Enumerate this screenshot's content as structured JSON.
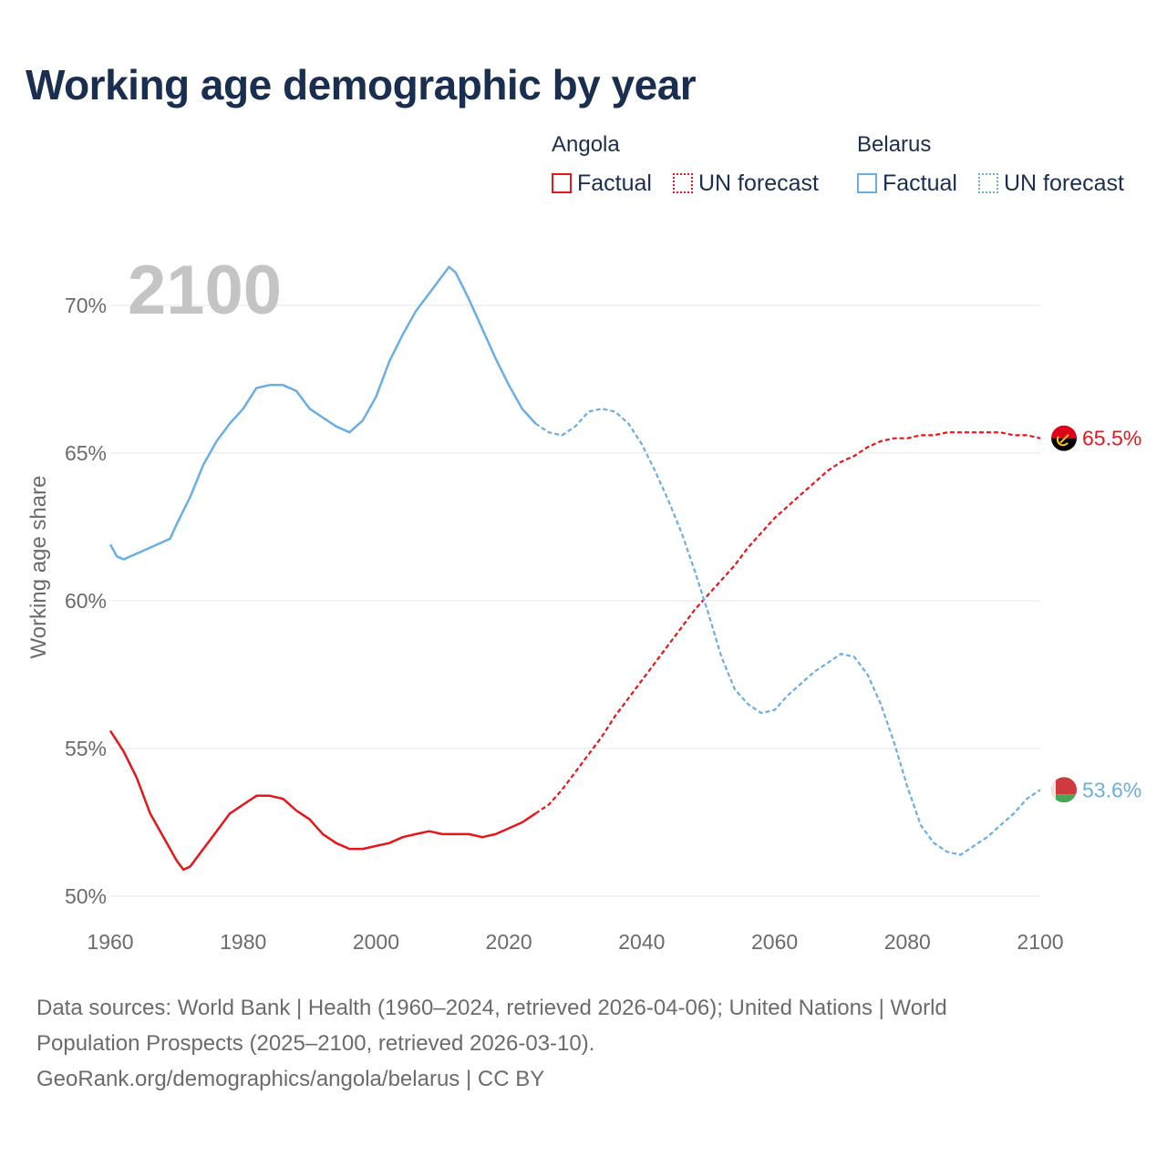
{
  "title": "Working age demographic by year",
  "legend": {
    "angola": {
      "name": "Angola",
      "factual": "Factual",
      "forecast": "UN forecast",
      "color": "#e8161b"
    },
    "belarus": {
      "name": "Belarus",
      "factual": "Factual",
      "forecast": "UN forecast",
      "color": "#6aaee4"
    }
  },
  "sources": {
    "line1": "Data sources: World Bank | Health (1960–2024, retrieved 2026-04-06); United Nations | World",
    "line2": "Population Prospects (2025–2100, retrieved 2026-03-10).",
    "line3": "GeoRank.org/demographics/angola/belarus | CC BY"
  },
  "chart_data": {
    "type": "line",
    "title": "Working age demographic by year",
    "xlabel": "",
    "ylabel": "Working age share",
    "current_year": "2100",
    "xlim": [
      1960,
      2100
    ],
    "ylim": [
      50,
      72
    ],
    "x_ticks": [
      1960,
      1980,
      2000,
      2020,
      2040,
      2060,
      2080,
      2100
    ],
    "y_ticks": [
      50,
      55,
      60,
      65,
      70
    ],
    "y_tick_suffix": "%",
    "forecast_start": 2024,
    "series": [
      {
        "name": "Angola",
        "color": "#e8161b",
        "end_label": "65.5%",
        "flag": "angola-flag",
        "points": [
          [
            1960,
            55.6
          ],
          [
            1962,
            54.9
          ],
          [
            1964,
            54.0
          ],
          [
            1966,
            52.8
          ],
          [
            1968,
            52.0
          ],
          [
            1970,
            51.2
          ],
          [
            1971,
            50.9
          ],
          [
            1972,
            51.0
          ],
          [
            1974,
            51.6
          ],
          [
            1976,
            52.2
          ],
          [
            1978,
            52.8
          ],
          [
            1980,
            53.1
          ],
          [
            1982,
            53.4
          ],
          [
            1984,
            53.4
          ],
          [
            1986,
            53.3
          ],
          [
            1988,
            52.9
          ],
          [
            1990,
            52.6
          ],
          [
            1992,
            52.1
          ],
          [
            1994,
            51.8
          ],
          [
            1996,
            51.6
          ],
          [
            1998,
            51.6
          ],
          [
            2000,
            51.7
          ],
          [
            2002,
            51.8
          ],
          [
            2004,
            52.0
          ],
          [
            2006,
            52.1
          ],
          [
            2008,
            52.2
          ],
          [
            2010,
            52.1
          ],
          [
            2012,
            52.1
          ],
          [
            2014,
            52.1
          ],
          [
            2016,
            52.0
          ],
          [
            2018,
            52.1
          ],
          [
            2020,
            52.3
          ],
          [
            2022,
            52.5
          ],
          [
            2024,
            52.8
          ],
          [
            2026,
            53.1
          ],
          [
            2028,
            53.6
          ],
          [
            2030,
            54.2
          ],
          [
            2032,
            54.8
          ],
          [
            2034,
            55.4
          ],
          [
            2036,
            56.1
          ],
          [
            2038,
            56.7
          ],
          [
            2040,
            57.3
          ],
          [
            2042,
            57.9
          ],
          [
            2044,
            58.5
          ],
          [
            2046,
            59.1
          ],
          [
            2048,
            59.7
          ],
          [
            2050,
            60.2
          ],
          [
            2052,
            60.7
          ],
          [
            2054,
            61.2
          ],
          [
            2056,
            61.8
          ],
          [
            2058,
            62.3
          ],
          [
            2060,
            62.8
          ],
          [
            2062,
            63.2
          ],
          [
            2064,
            63.6
          ],
          [
            2066,
            64.0
          ],
          [
            2068,
            64.4
          ],
          [
            2070,
            64.7
          ],
          [
            2072,
            64.9
          ],
          [
            2074,
            65.2
          ],
          [
            2076,
            65.4
          ],
          [
            2078,
            65.5
          ],
          [
            2080,
            65.5
          ],
          [
            2082,
            65.6
          ],
          [
            2084,
            65.6
          ],
          [
            2086,
            65.7
          ],
          [
            2088,
            65.7
          ],
          [
            2090,
            65.7
          ],
          [
            2092,
            65.7
          ],
          [
            2094,
            65.7
          ],
          [
            2096,
            65.6
          ],
          [
            2098,
            65.6
          ],
          [
            2100,
            65.5
          ]
        ]
      },
      {
        "name": "Belarus",
        "color": "#6aaee4",
        "end_label": "53.6%",
        "flag": "belarus-flag",
        "points": [
          [
            1960,
            61.9
          ],
          [
            1961,
            61.5
          ],
          [
            1962,
            61.4
          ],
          [
            1964,
            61.6
          ],
          [
            1966,
            61.8
          ],
          [
            1968,
            62.0
          ],
          [
            1969,
            62.1
          ],
          [
            1970,
            62.6
          ],
          [
            1972,
            63.5
          ],
          [
            1974,
            64.6
          ],
          [
            1976,
            65.4
          ],
          [
            1978,
            66.0
          ],
          [
            1980,
            66.5
          ],
          [
            1982,
            67.2
          ],
          [
            1984,
            67.3
          ],
          [
            1986,
            67.3
          ],
          [
            1988,
            67.1
          ],
          [
            1990,
            66.5
          ],
          [
            1992,
            66.2
          ],
          [
            1994,
            65.9
          ],
          [
            1996,
            65.7
          ],
          [
            1998,
            66.1
          ],
          [
            2000,
            66.9
          ],
          [
            2002,
            68.1
          ],
          [
            2004,
            69.0
          ],
          [
            2006,
            69.8
          ],
          [
            2008,
            70.4
          ],
          [
            2010,
            71.0
          ],
          [
            2011,
            71.3
          ],
          [
            2012,
            71.1
          ],
          [
            2014,
            70.2
          ],
          [
            2016,
            69.2
          ],
          [
            2018,
            68.2
          ],
          [
            2020,
            67.3
          ],
          [
            2022,
            66.5
          ],
          [
            2024,
            66.0
          ],
          [
            2026,
            65.7
          ],
          [
            2028,
            65.6
          ],
          [
            2030,
            65.9
          ],
          [
            2032,
            66.4
          ],
          [
            2034,
            66.5
          ],
          [
            2036,
            66.4
          ],
          [
            2038,
            66.0
          ],
          [
            2040,
            65.3
          ],
          [
            2042,
            64.4
          ],
          [
            2044,
            63.4
          ],
          [
            2046,
            62.3
          ],
          [
            2048,
            61.0
          ],
          [
            2050,
            59.6
          ],
          [
            2052,
            58.1
          ],
          [
            2054,
            57.0
          ],
          [
            2056,
            56.5
          ],
          [
            2058,
            56.2
          ],
          [
            2060,
            56.3
          ],
          [
            2062,
            56.8
          ],
          [
            2064,
            57.2
          ],
          [
            2066,
            57.6
          ],
          [
            2068,
            57.9
          ],
          [
            2070,
            58.2
          ],
          [
            2072,
            58.1
          ],
          [
            2074,
            57.5
          ],
          [
            2076,
            56.5
          ],
          [
            2078,
            55.2
          ],
          [
            2080,
            53.7
          ],
          [
            2082,
            52.4
          ],
          [
            2084,
            51.8
          ],
          [
            2086,
            51.5
          ],
          [
            2088,
            51.4
          ],
          [
            2090,
            51.7
          ],
          [
            2092,
            52.0
          ],
          [
            2094,
            52.4
          ],
          [
            2096,
            52.8
          ],
          [
            2098,
            53.3
          ],
          [
            2100,
            53.6
          ]
        ]
      }
    ]
  }
}
